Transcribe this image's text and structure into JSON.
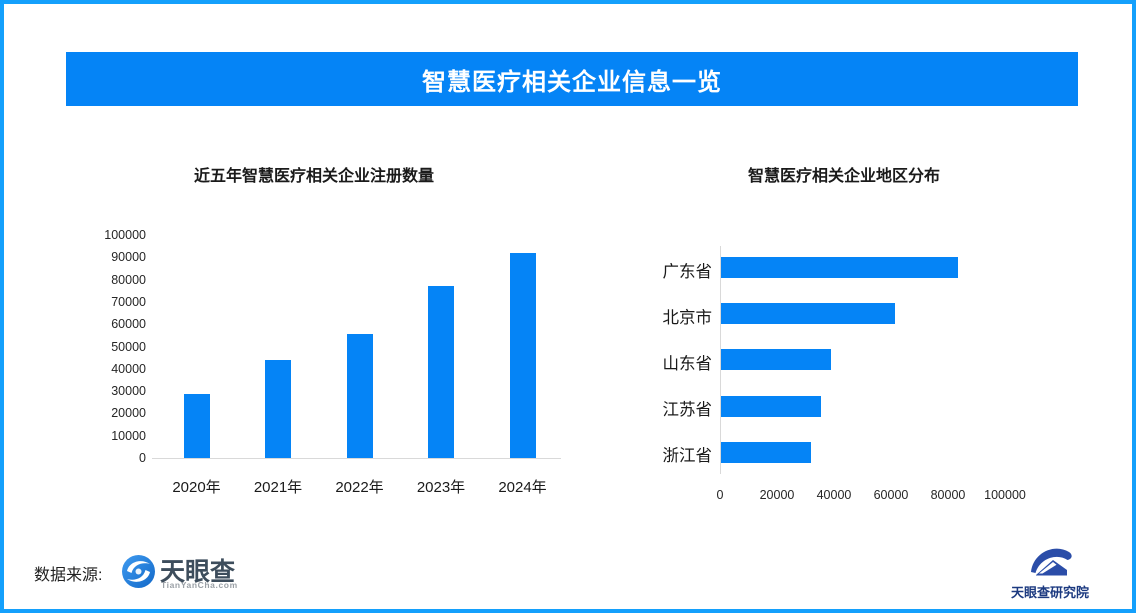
{
  "banner": {
    "title": "智慧医疗相关企业信息一览"
  },
  "colors": {
    "accent_blue": "#0584f6",
    "frame_blue": "#14a0fc",
    "axis_gray": "#d9d9d9",
    "tyc_text": "#3d4d5c",
    "institute_blue": "#2b4da8"
  },
  "chart_data": [
    {
      "type": "bar",
      "orientation": "vertical",
      "title": "近五年智慧医疗相关企业注册数量",
      "categories": [
        "2020年",
        "2021年",
        "2022年",
        "2023年",
        "2024年"
      ],
      "values": [
        28500,
        44000,
        55500,
        77000,
        92000
      ],
      "ylabel": "",
      "xlabel": "",
      "ylim": [
        0,
        100000
      ],
      "yticks": [
        0,
        10000,
        20000,
        30000,
        40000,
        50000,
        60000,
        70000,
        80000,
        90000,
        100000
      ],
      "grid": false,
      "bar_color": "#0584f6"
    },
    {
      "type": "bar",
      "orientation": "horizontal",
      "title": "智慧医疗相关企业地区分布",
      "categories": [
        "广东省",
        "北京市",
        "山东省",
        "江苏省",
        "浙江省"
      ],
      "values": [
        83000,
        61000,
        38500,
        35000,
        31500
      ],
      "ylabel": "",
      "xlabel": "",
      "xlim": [
        0,
        100000
      ],
      "xticks": [
        0,
        20000,
        40000,
        60000,
        80000,
        100000
      ],
      "grid": false,
      "bar_color": "#0584f6"
    }
  ],
  "footer": {
    "source_label": "数据来源:",
    "tianyancha_name": "天眼查",
    "tianyancha_domain": "TianYanCha.com",
    "institute_name": "天眼查研究院"
  }
}
